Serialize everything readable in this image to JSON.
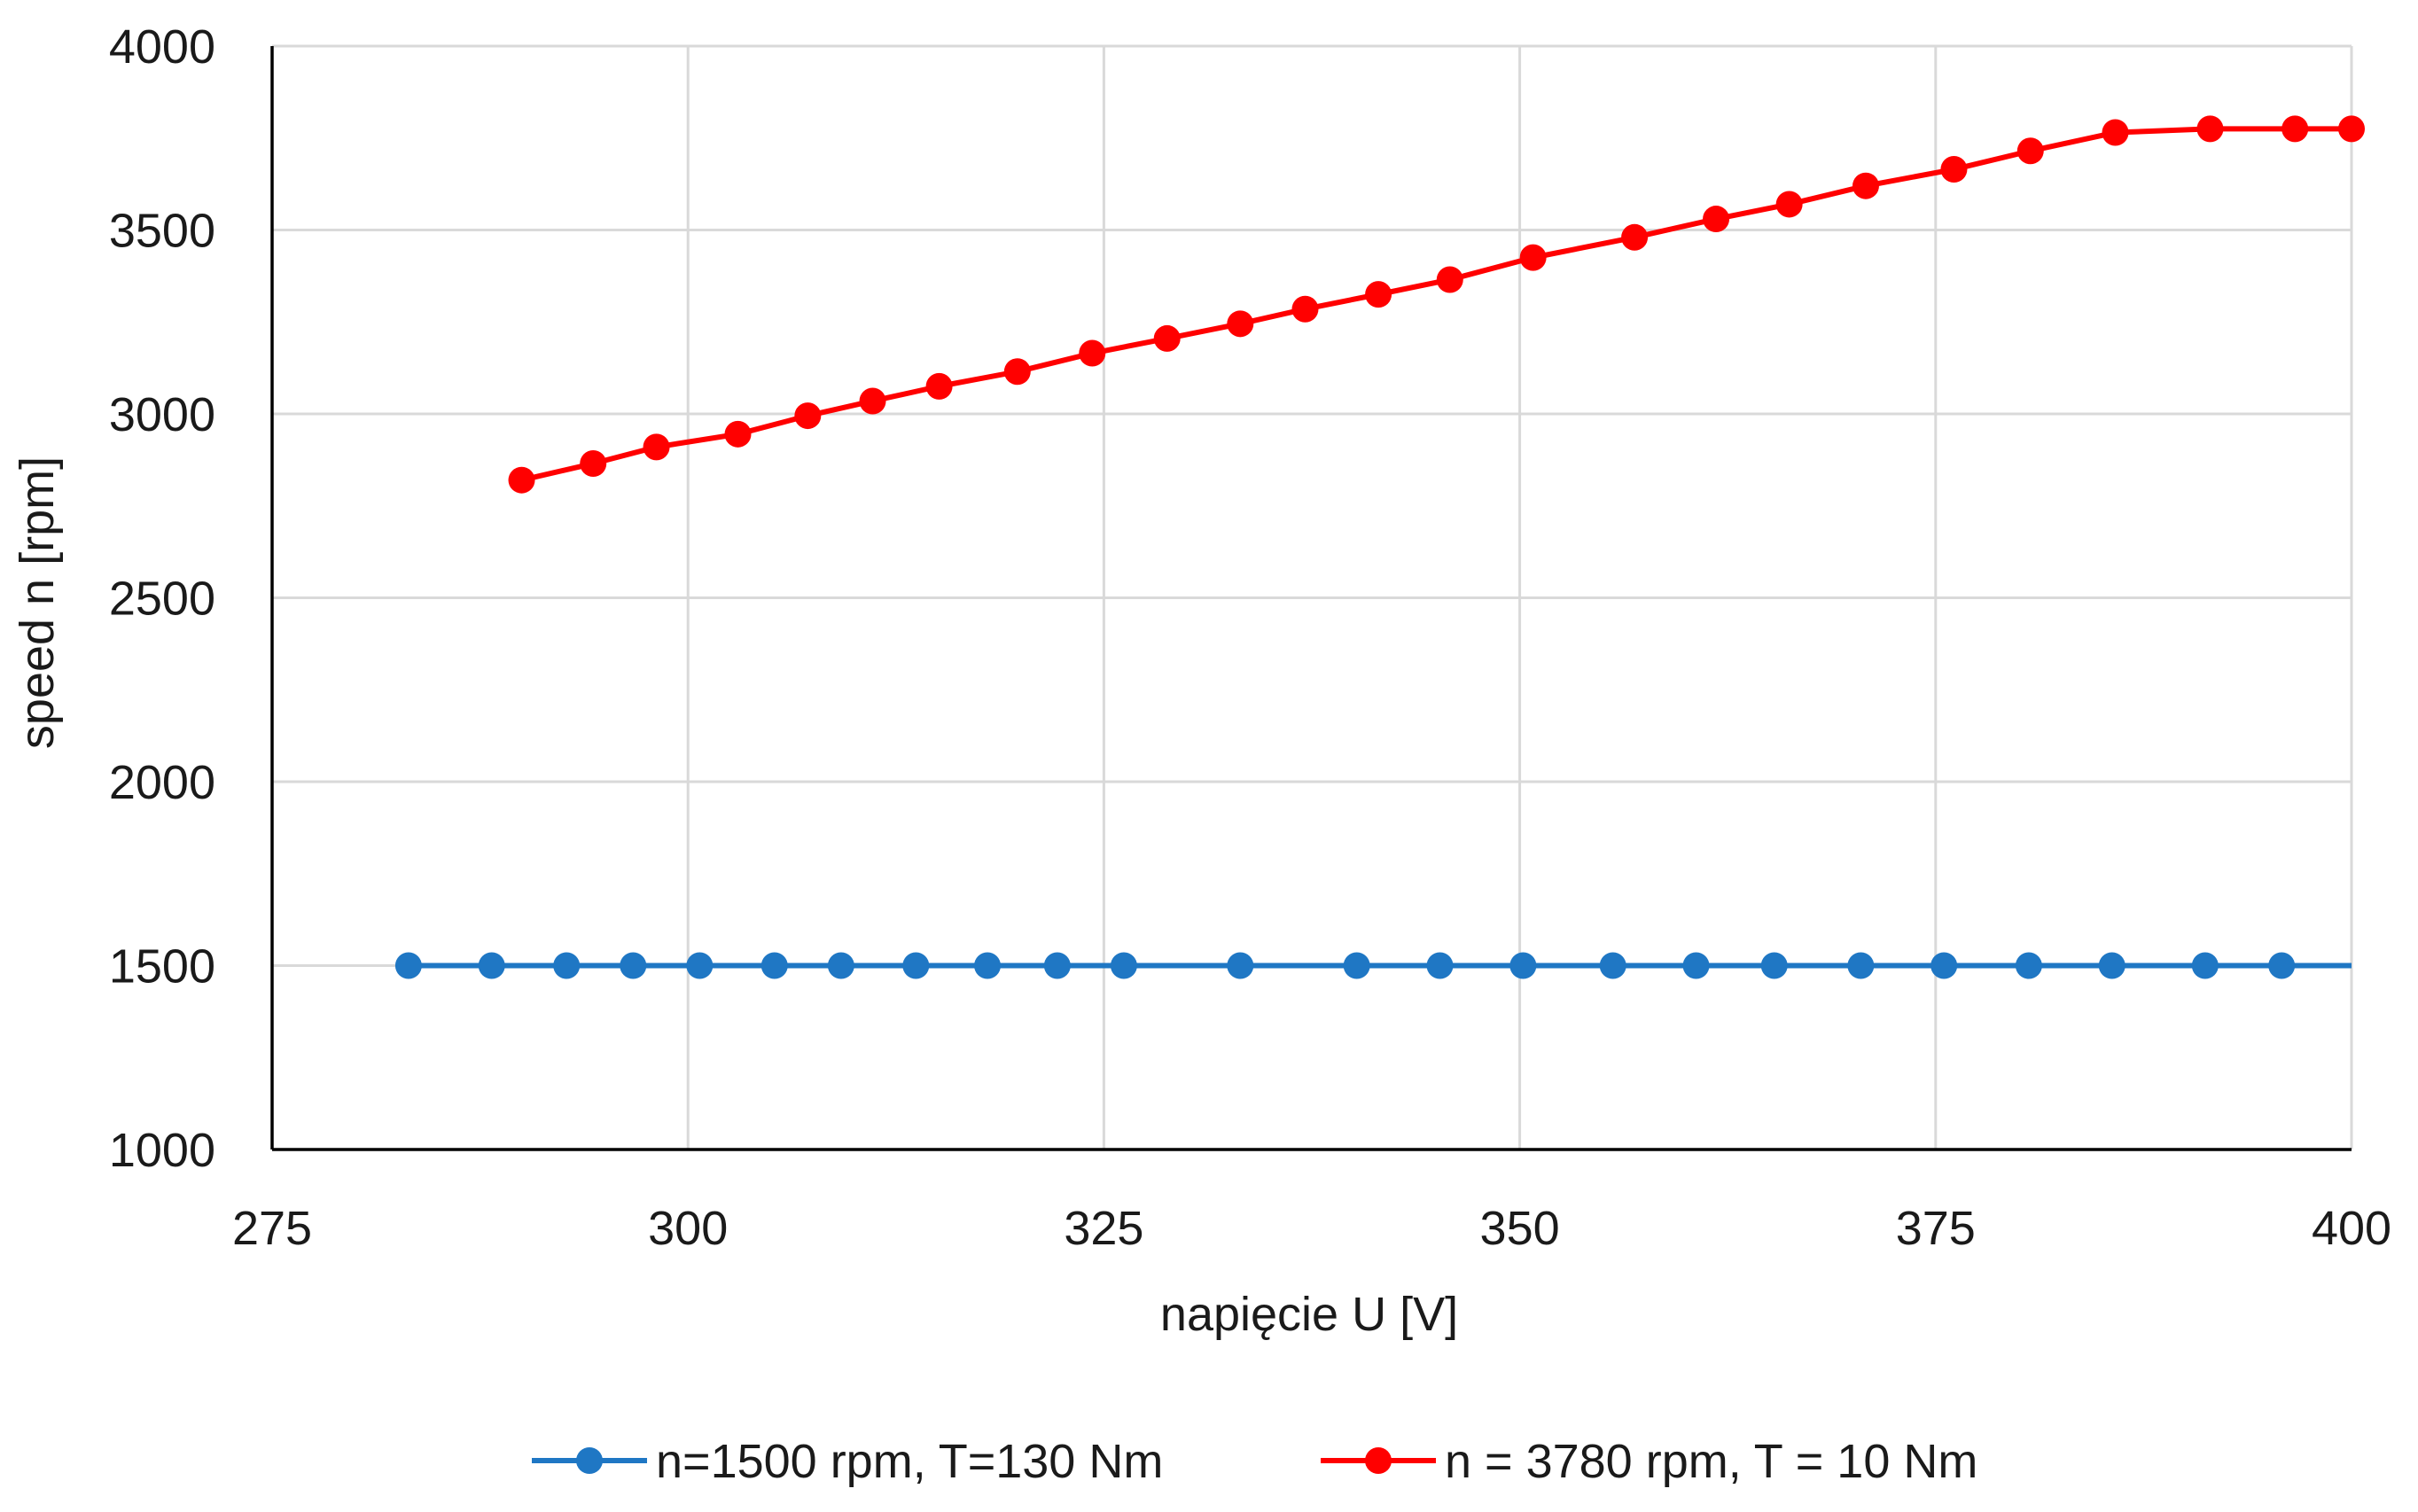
{
  "chart_data": {
    "type": "line",
    "title": "",
    "xlabel": "napięcie U [V]",
    "ylabel": "speed  n [rpm]",
    "xlim": [
      275,
      400
    ],
    "ylim": [
      1000,
      4000
    ],
    "x_ticks": [
      275,
      300,
      325,
      350,
      375,
      400
    ],
    "y_ticks": [
      1000,
      1500,
      2000,
      2500,
      3000,
      3500,
      4000
    ],
    "x_tick_labels": [
      "275",
      "300",
      "325",
      "350",
      "375",
      "400"
    ],
    "y_tick_labels": [
      "1000",
      "1500",
      "2000",
      "2500",
      "3000",
      "3500",
      "4000"
    ],
    "grid": "vertical and horizontal gridlines",
    "legend_position": "bottom",
    "series": [
      {
        "name": "n=1500 rpm, T=130 Nm",
        "color": "#1f77c4",
        "marker": "circle",
        "line_extends_to": 400,
        "x": [
          283.2,
          288.2,
          292.7,
          296.7,
          300.7,
          305.2,
          309.2,
          313.7,
          318.0,
          322.2,
          326.2,
          333.2,
          340.2,
          345.2,
          350.2,
          355.6,
          360.6,
          365.3,
          370.5,
          375.5,
          380.6,
          385.6,
          391.2,
          395.8
        ],
        "y": [
          1500,
          1500,
          1500,
          1500,
          1500,
          1500,
          1500,
          1500,
          1500,
          1500,
          1500,
          1500,
          1500,
          1500,
          1500,
          1500,
          1500,
          1500,
          1500,
          1500,
          1500,
          1500,
          1500,
          1500
        ]
      },
      {
        "name": "n = 3780 rpm, T = 10 Nm",
        "color": "#ff0000",
        "marker": "circle",
        "x": [
          290.0,
          294.3,
          298.1,
          303.0,
          307.2,
          311.1,
          315.1,
          319.8,
          324.3,
          328.8,
          333.2,
          337.1,
          341.5,
          345.8,
          350.8,
          356.9,
          361.8,
          366.2,
          370.8,
          376.1,
          380.7,
          385.8,
          391.5,
          396.6,
          400.0
        ],
        "y": [
          2820,
          2865,
          2910,
          2945,
          2995,
          3035,
          3075,
          3115,
          3165,
          3205,
          3245,
          3285,
          3325,
          3365,
          3425,
          3480,
          3530,
          3570,
          3620,
          3665,
          3715,
          3765,
          3775,
          3775,
          3775
        ]
      }
    ]
  }
}
